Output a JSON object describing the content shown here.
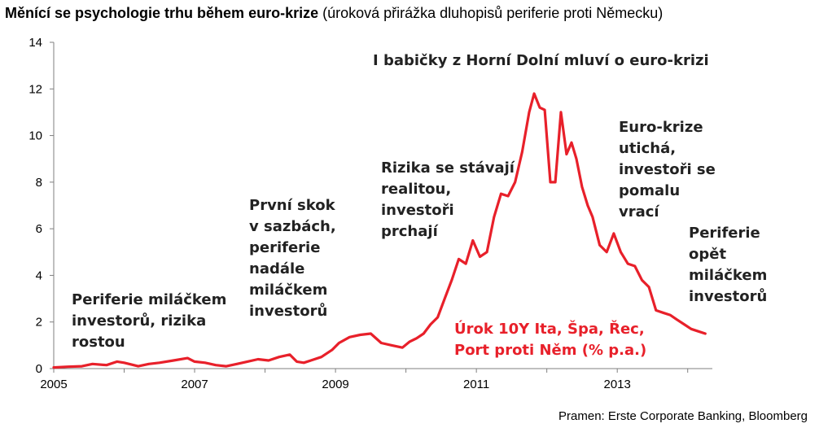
{
  "title": {
    "bold": "Měnící se psychologie trhu během euro-krize",
    "rest": " (úroková přirážka dluhopisů periferie proti Německu)"
  },
  "source": "Pramen: Erste Corporate Banking, Bloomberg",
  "colors": {
    "series": "#e8202a",
    "axis": "#7f7f7f",
    "text": "#222222"
  },
  "chart_data": {
    "type": "line",
    "title": "Měnící se psychologie trhu během euro-krize (úroková přirážka dluhopisů periferie proti Německu)",
    "xlabel": "",
    "ylabel": "",
    "xlim": [
      2005,
      2014.35
    ],
    "ylim": [
      0,
      14
    ],
    "grid": false,
    "xticks": [
      "2005",
      "2007",
      "2009",
      "2011",
      "2013"
    ],
    "yticks": [
      "0",
      "2",
      "4",
      "6",
      "8",
      "10",
      "12",
      "14"
    ],
    "series": [
      {
        "name": "Úrok 10Y Ita, Špa, Řec, Port proti Něm (% p.a.)",
        "color": "#e8202a",
        "x": [
          2005.0,
          2005.2,
          2005.4,
          2005.55,
          2005.75,
          2005.9,
          2006.0,
          2006.2,
          2006.35,
          2006.5,
          2006.7,
          2006.9,
          2007.0,
          2007.15,
          2007.3,
          2007.45,
          2007.6,
          2007.75,
          2007.9,
          2008.05,
          2008.2,
          2008.35,
          2008.45,
          2008.55,
          2008.65,
          2008.8,
          2008.95,
          2009.05,
          2009.2,
          2009.35,
          2009.5,
          2009.65,
          2009.8,
          2009.95,
          2010.05,
          2010.15,
          2010.25,
          2010.35,
          2010.45,
          2010.55,
          2010.65,
          2010.75,
          2010.85,
          2010.95,
          2011.05,
          2011.15,
          2011.25,
          2011.35,
          2011.45,
          2011.55,
          2011.65,
          2011.75,
          2011.82,
          2011.9,
          2011.97,
          2012.05,
          2012.12,
          2012.2,
          2012.28,
          2012.35,
          2012.42,
          2012.5,
          2012.58,
          2012.65,
          2012.75,
          2012.85,
          2012.95,
          2013.05,
          2013.15,
          2013.25,
          2013.35,
          2013.45,
          2013.55,
          2013.65,
          2013.75,
          2013.85,
          2013.95,
          2014.05,
          2014.15,
          2014.25
        ],
        "values": [
          0.05,
          0.08,
          0.1,
          0.2,
          0.15,
          0.3,
          0.25,
          0.1,
          0.2,
          0.25,
          0.35,
          0.45,
          0.3,
          0.25,
          0.15,
          0.1,
          0.2,
          0.3,
          0.4,
          0.35,
          0.5,
          0.6,
          0.3,
          0.25,
          0.35,
          0.5,
          0.8,
          1.1,
          1.35,
          1.45,
          1.5,
          1.1,
          1.0,
          0.9,
          1.15,
          1.3,
          1.5,
          1.9,
          2.2,
          3.0,
          3.8,
          4.7,
          4.5,
          5.5,
          4.8,
          5.0,
          6.5,
          7.5,
          7.4,
          8.0,
          9.3,
          11.0,
          11.8,
          11.2,
          11.1,
          8.0,
          8.0,
          11.0,
          9.2,
          9.7,
          9.0,
          7.8,
          7.0,
          6.5,
          5.3,
          5.0,
          5.8,
          5.0,
          4.5,
          4.4,
          3.8,
          3.5,
          2.5,
          2.4,
          2.3,
          2.1,
          1.9,
          1.7,
          1.6,
          1.5
        ]
      }
    ],
    "annotations": [
      {
        "lines": [
          "Periferie miláčkem",
          "investorů, rizika",
          "rostou"
        ]
      },
      {
        "lines": [
          "První skok",
          "v sazbách,",
          "periferie",
          "nadále",
          "miláčkem",
          "investorů"
        ]
      },
      {
        "lines": [
          "Rizika se stávají",
          "realitou,",
          "investoři",
          "prchají"
        ]
      },
      {
        "lines": [
          "I babičky z Horní Dolní mluví o euro-krizi"
        ]
      },
      {
        "lines": [
          "Euro-krize",
          "utichá,",
          "investoři se",
          "pomalu",
          "vrací"
        ]
      },
      {
        "lines": [
          "Periferie",
          "opět",
          "miláčkem",
          "investorů"
        ]
      },
      {
        "lines": [
          "Úrok 10Y Ita, Špa, Řec,",
          "Port proti Něm (% p.a.)"
        ]
      }
    ]
  }
}
